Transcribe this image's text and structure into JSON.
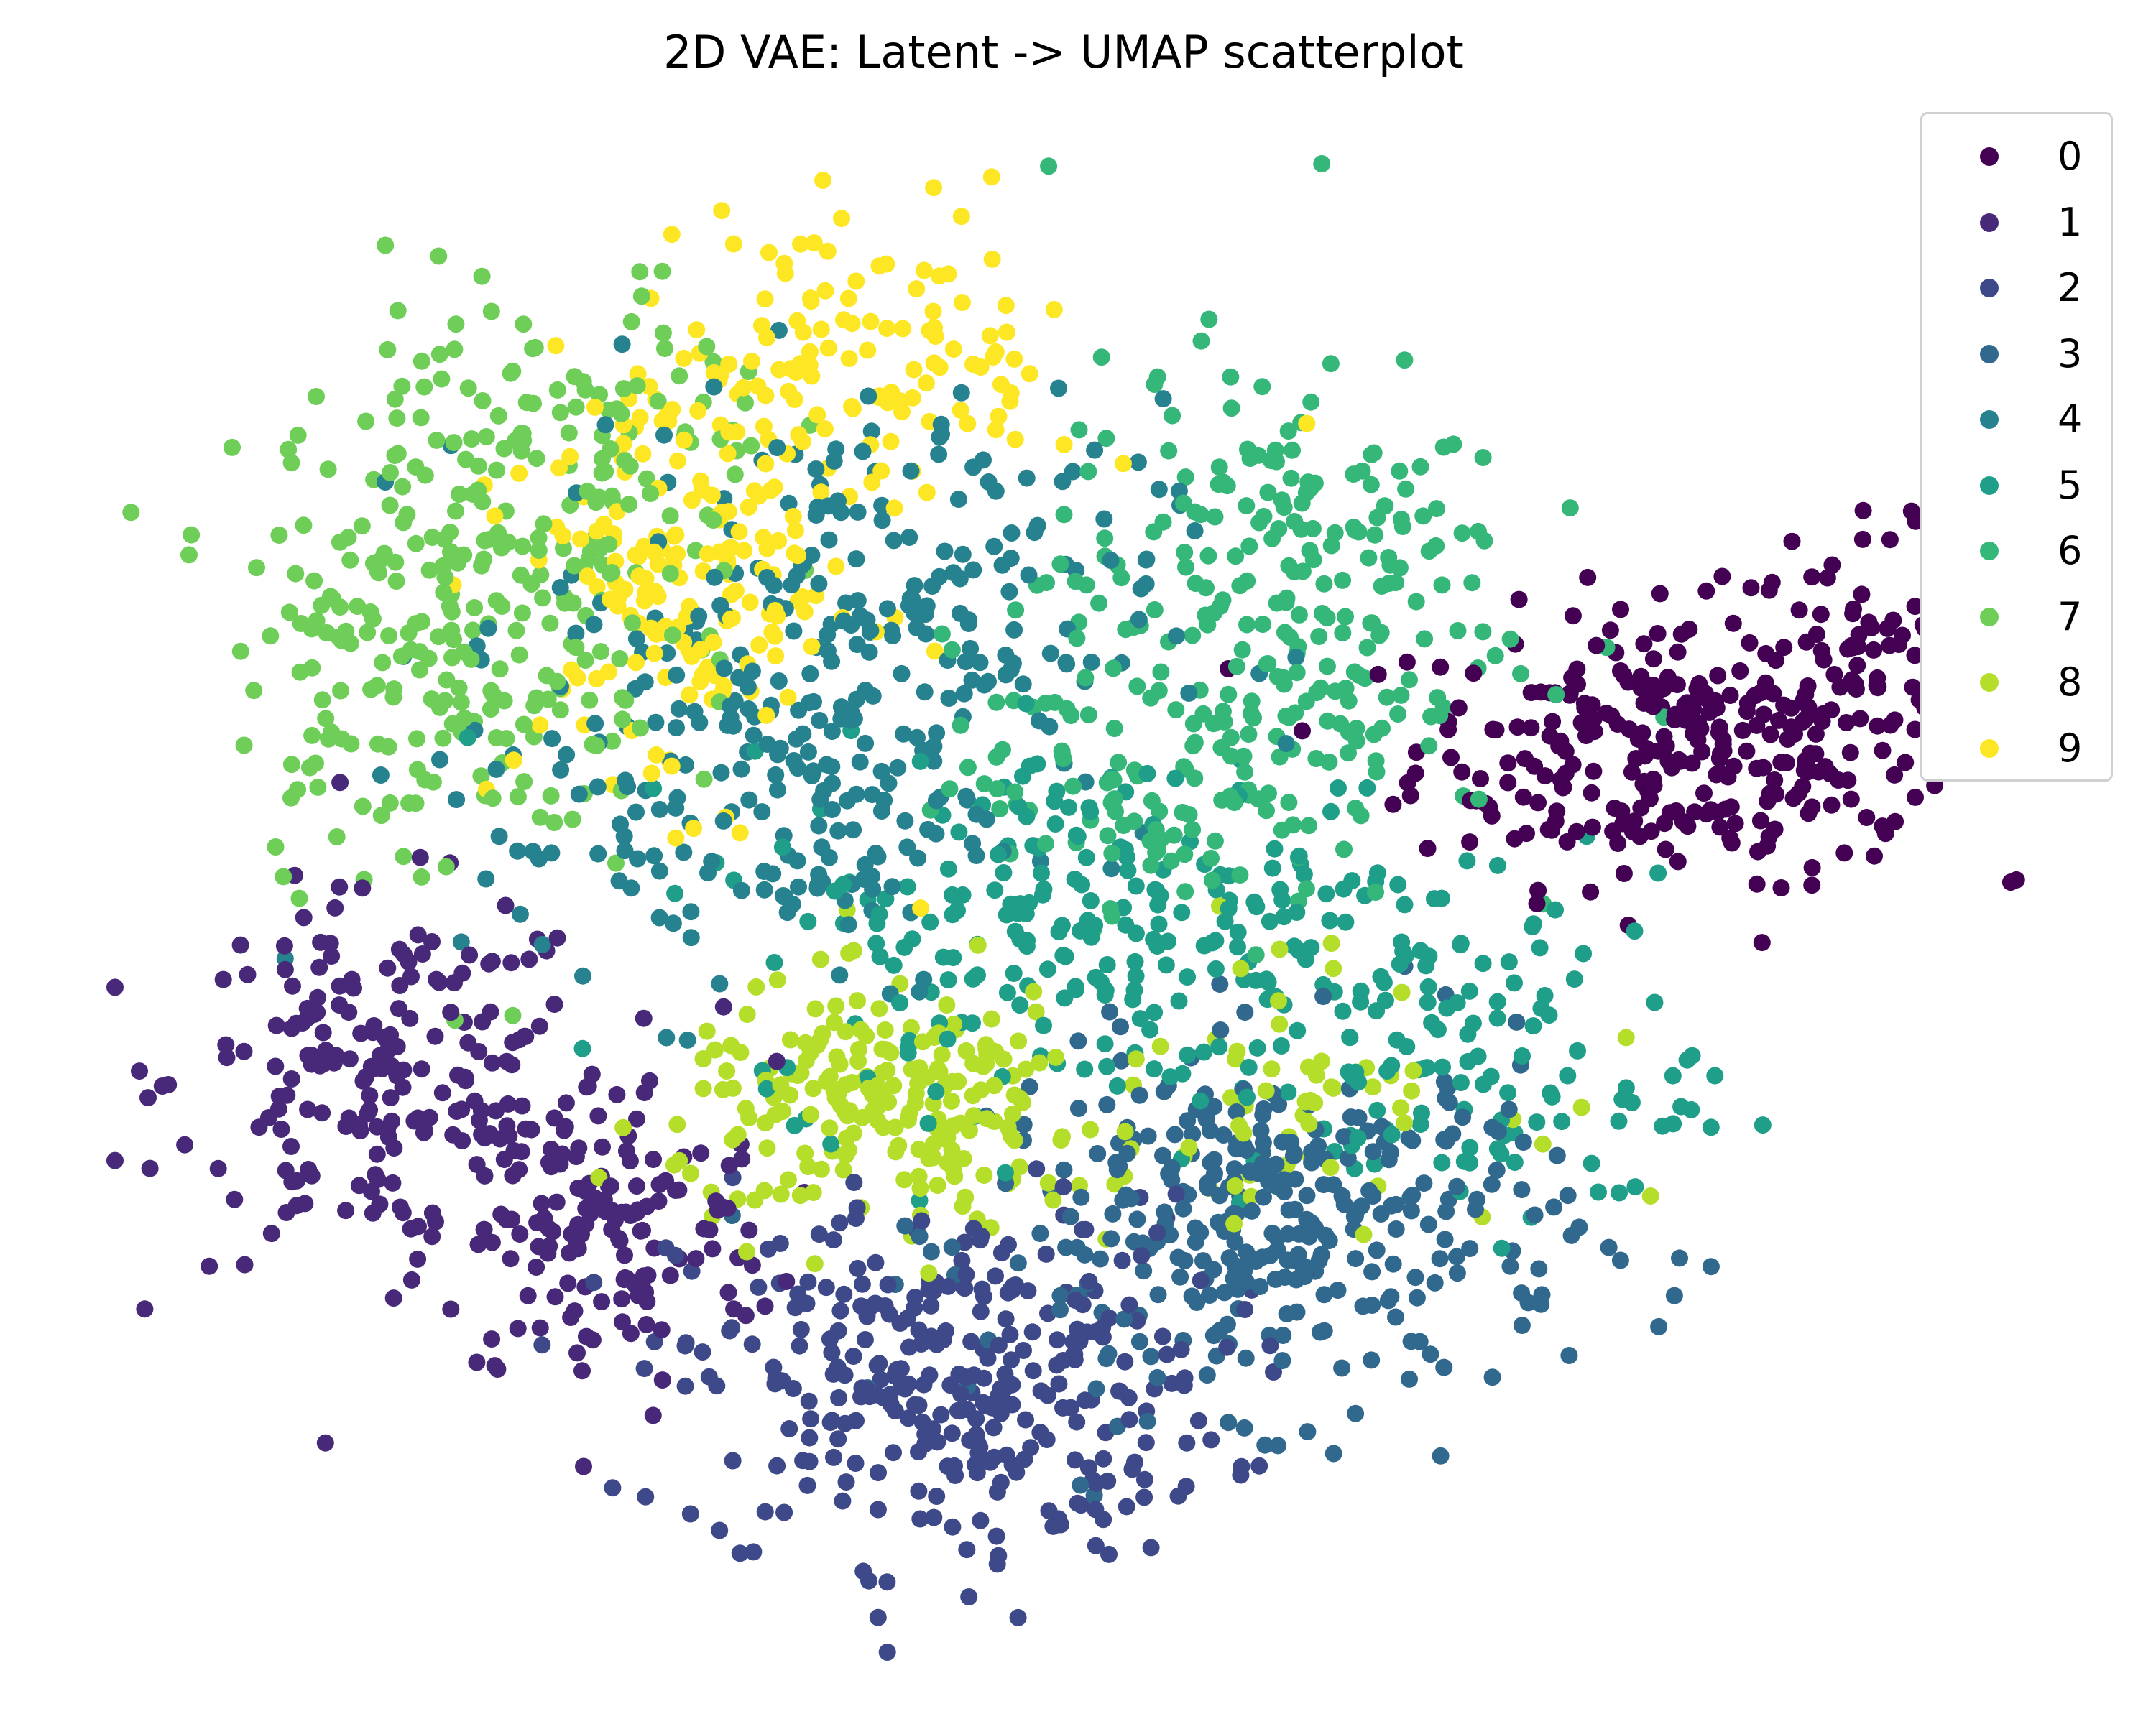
{
  "chart_data": {
    "type": "scatter",
    "title": "2D VAE: Latent -> UMAP scatterplot",
    "xlabel": "",
    "ylabel": "",
    "axes_visible": false,
    "grid": false,
    "legend_position": "top-right",
    "xlim": [
      0,
      1
    ],
    "ylim": [
      0,
      1
    ],
    "colormap": "viridis",
    "series": [
      {
        "name": "0",
        "color": "#440154",
        "clusters": [
          {
            "center": [
              0.8,
              0.6
            ],
            "spread": [
              0.065,
              0.045
            ],
            "count": 260
          },
          {
            "center": [
              0.89,
              0.64
            ],
            "spread": [
              0.04,
              0.05
            ],
            "count": 90
          }
        ]
      },
      {
        "name": "1",
        "color": "#482878",
        "clusters": [
          {
            "center": [
              0.14,
              0.38
            ],
            "spread": [
              0.055,
              0.06
            ],
            "count": 200
          },
          {
            "center": [
              0.25,
              0.28
            ],
            "spread": [
              0.045,
              0.055
            ],
            "count": 150
          }
        ]
      },
      {
        "name": "2",
        "color": "#3e4989",
        "clusters": [
          {
            "center": [
              0.43,
              0.18
            ],
            "spread": [
              0.07,
              0.06
            ],
            "count": 330
          }
        ]
      },
      {
        "name": "3",
        "color": "#31688e",
        "clusters": [
          {
            "center": [
              0.6,
              0.28
            ],
            "spread": [
              0.075,
              0.06
            ],
            "count": 340
          }
        ]
      },
      {
        "name": "4",
        "color": "#26828e",
        "clusters": [
          {
            "center": [
              0.38,
              0.68
            ],
            "spread": [
              0.08,
              0.075
            ],
            "count": 250
          },
          {
            "center": [
              0.32,
              0.55
            ],
            "spread": [
              0.07,
              0.06
            ],
            "count": 120
          }
        ]
      },
      {
        "name": "5",
        "color": "#1f9e89",
        "clusters": [
          {
            "center": [
              0.52,
              0.48
            ],
            "spread": [
              0.1,
              0.06
            ],
            "count": 260
          },
          {
            "center": [
              0.7,
              0.38
            ],
            "spread": [
              0.06,
              0.05
            ],
            "count": 100
          }
        ]
      },
      {
        "name": "6",
        "color": "#35b779",
        "clusters": [
          {
            "center": [
              0.6,
              0.7
            ],
            "spread": [
              0.06,
              0.08
            ],
            "count": 230
          },
          {
            "center": [
              0.53,
              0.58
            ],
            "spread": [
              0.05,
              0.045
            ],
            "count": 100
          }
        ]
      },
      {
        "name": "7",
        "color": "#6ece58",
        "clusters": [
          {
            "center": [
              0.17,
              0.68
            ],
            "spread": [
              0.055,
              0.085
            ],
            "count": 240
          },
          {
            "center": [
              0.24,
              0.8
            ],
            "spread": [
              0.05,
              0.06
            ],
            "count": 100
          }
        ]
      },
      {
        "name": "8",
        "color": "#b5de2b",
        "clusters": [
          {
            "center": [
              0.4,
              0.36
            ],
            "spread": [
              0.055,
              0.04
            ],
            "count": 220
          },
          {
            "center": [
              0.6,
              0.38
            ],
            "spread": [
              0.06,
              0.045
            ],
            "count": 60
          }
        ]
      },
      {
        "name": "9",
        "color": "#fde725",
        "clusters": [
          {
            "center": [
              0.3,
              0.72
            ],
            "spread": [
              0.045,
              0.075
            ],
            "count": 200
          },
          {
            "center": [
              0.4,
              0.86
            ],
            "spread": [
              0.05,
              0.05
            ],
            "count": 100
          }
        ]
      }
    ]
  }
}
